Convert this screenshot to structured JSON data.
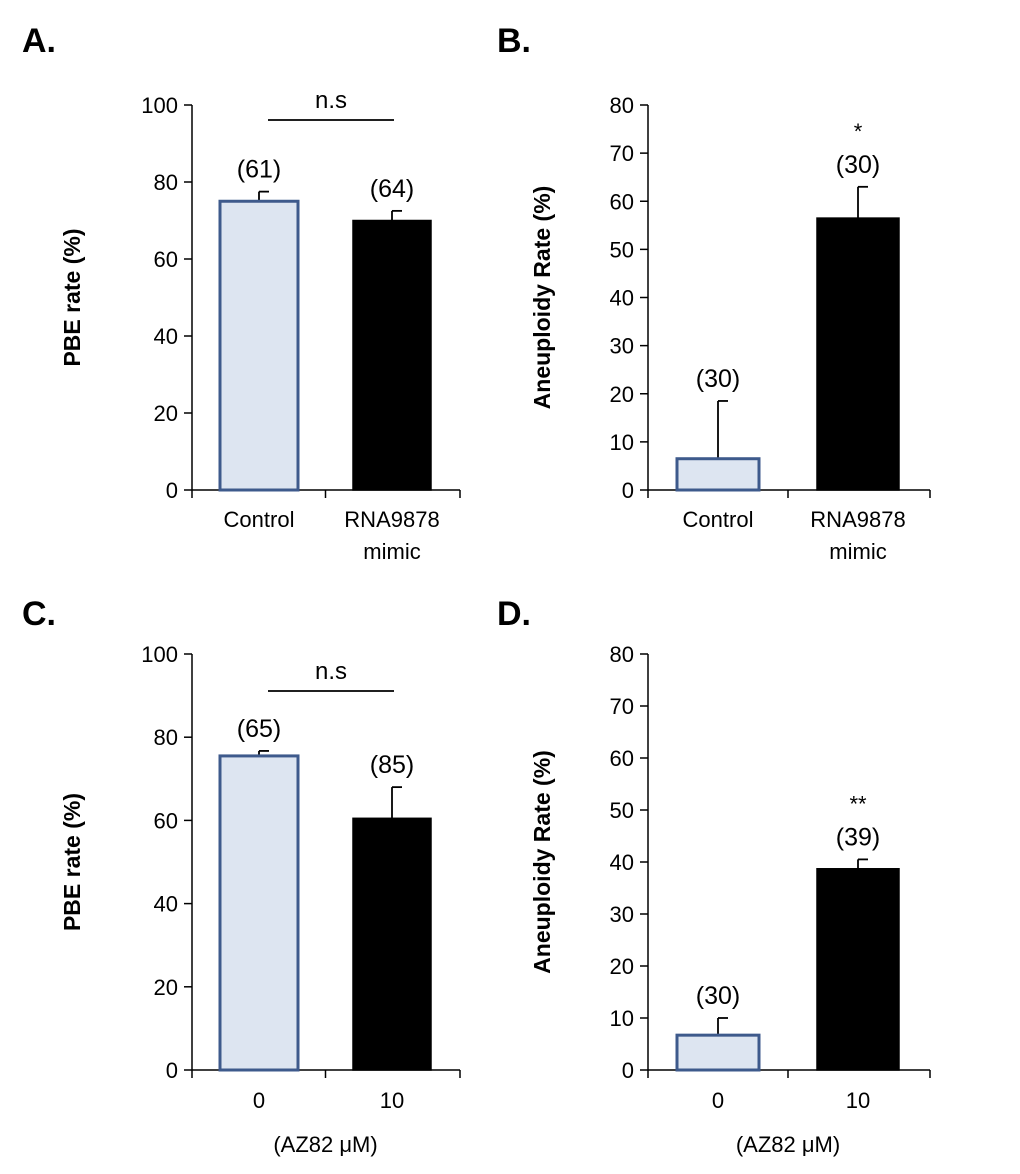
{
  "chart_data": [
    {
      "type": "bar",
      "panel": "A.",
      "ylabel": "PBE rate (%)",
      "xlabel": "",
      "ylim": [
        0,
        100
      ],
      "yticks": [
        "0",
        "20",
        "40",
        "60",
        "80",
        "100"
      ],
      "categories": [
        [
          "Control"
        ],
        [
          "RNA9878",
          "mimic"
        ]
      ],
      "values": [
        75,
        70
      ],
      "errors": [
        2.5,
        2.5
      ],
      "n_labels": [
        "(61)",
        "(64)"
      ],
      "sig_labels": [
        "",
        ""
      ],
      "bracket_label": "n.s",
      "colors": {
        "control_fill": "#dde5f1",
        "control_edge": "#3e5a8c",
        "treated_fill": "#000000"
      }
    },
    {
      "type": "bar",
      "panel": "B.",
      "ylabel": "Aneuploidy Rate (%)",
      "xlabel": "",
      "ylim": [
        0,
        80
      ],
      "yticks": [
        "0",
        "10",
        "20",
        "30",
        "40",
        "50",
        "60",
        "70",
        "80"
      ],
      "categories": [
        [
          "Control"
        ],
        [
          "RNA9878",
          "mimic"
        ]
      ],
      "values": [
        6.5,
        56.5
      ],
      "errors": [
        12,
        6.5
      ],
      "n_labels": [
        "(30)",
        "(30)"
      ],
      "sig_labels": [
        "",
        "*"
      ],
      "bracket_label": "",
      "colors": {
        "control_fill": "#dde5f1",
        "control_edge": "#3e5a8c",
        "treated_fill": "#000000"
      }
    },
    {
      "type": "bar",
      "panel": "C.",
      "ylabel": "PBE rate (%)",
      "xlabel": "(AZ82 μM)",
      "ylim": [
        0,
        100
      ],
      "yticks": [
        "0",
        "20",
        "40",
        "60",
        "80",
        "100"
      ],
      "categories": [
        [
          "0"
        ],
        [
          "10"
        ]
      ],
      "values": [
        75.5,
        60.5
      ],
      "errors": [
        1.2,
        7.5
      ],
      "n_labels": [
        "(65)",
        "(85)"
      ],
      "sig_labels": [
        "",
        ""
      ],
      "bracket_label": "n.s",
      "colors": {
        "control_fill": "#dde5f1",
        "control_edge": "#3e5a8c",
        "treated_fill": "#000000"
      }
    },
    {
      "type": "bar",
      "panel": "D.",
      "ylabel": "Aneuploidy Rate (%)",
      "xlabel": "(AZ82 μM)",
      "ylim": [
        0,
        80
      ],
      "yticks": [
        "0",
        "10",
        "20",
        "30",
        "40",
        "50",
        "60",
        "70",
        "80"
      ],
      "categories": [
        [
          "0"
        ],
        [
          "10"
        ]
      ],
      "values": [
        6.7,
        38.7
      ],
      "errors": [
        3.3,
        1.8
      ],
      "n_labels": [
        "(30)",
        "(39)"
      ],
      "sig_labels": [
        "",
        "**"
      ],
      "bracket_label": "",
      "colors": {
        "control_fill": "#dde5f1",
        "control_edge": "#3e5a8c",
        "treated_fill": "#000000"
      }
    }
  ]
}
